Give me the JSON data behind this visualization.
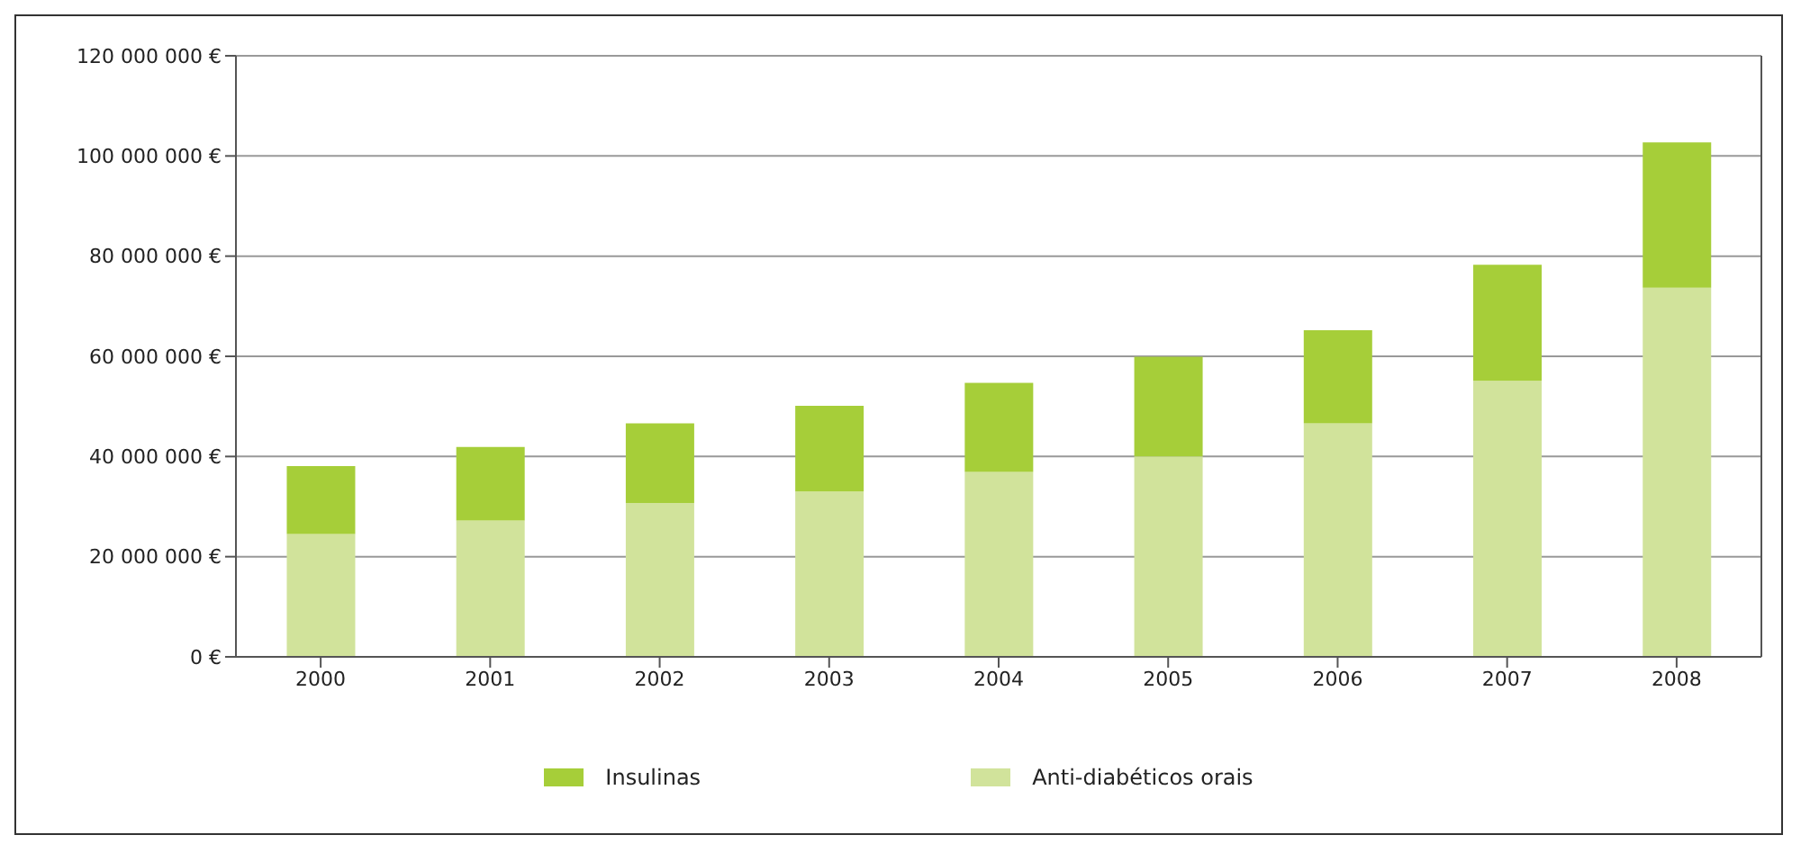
{
  "chart_data": {
    "type": "bar",
    "stacked": true,
    "categories": [
      "2000",
      "2001",
      "2002",
      "2003",
      "2004",
      "2005",
      "2006",
      "2007",
      "2008"
    ],
    "series": [
      {
        "name": "Anti-diabéticos orais",
        "color": "#d1e39b",
        "values": [
          24500000,
          27200000,
          30700000,
          33000000,
          36900000,
          40000000,
          46600000,
          55100000,
          73700000
        ]
      },
      {
        "name": "Insulinas",
        "color": "#a6ce39",
        "values": [
          13600000,
          14700000,
          15900000,
          17100000,
          17800000,
          19900000,
          18600000,
          23200000,
          29000000
        ]
      }
    ],
    "ylim": [
      0,
      120000000
    ],
    "yticks": [
      {
        "value": 0,
        "label": "0 €"
      },
      {
        "value": 20000000,
        "label": "20 000 000  €"
      },
      {
        "value": 40000000,
        "label": "40 000 000  €"
      },
      {
        "value": 60000000,
        "label": "60 000 000  €"
      },
      {
        "value": 80000000,
        "label": "80 000 000  €"
      },
      {
        "value": 100000000,
        "label": "100 000 000  €"
      },
      {
        "value": 120000000,
        "label": "120 000 000  €"
      }
    ],
    "grid": "y",
    "legend": "bottom"
  }
}
